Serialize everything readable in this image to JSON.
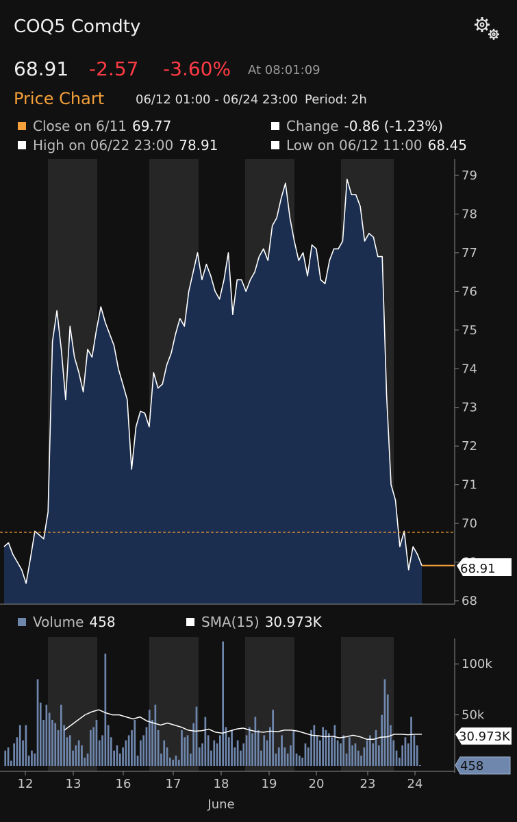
{
  "header": {
    "ticker": "COQ5 Comdty",
    "last": "68.91",
    "change": "-2.57",
    "change_pct": "-3.60%",
    "at_time": "At 08:01:09"
  },
  "price_chart": {
    "title": "Price Chart",
    "range": "06/12 01:00 - 06/24 23:00",
    "period": "Period: 2h",
    "legend": {
      "close_label": "Close on 6/11",
      "close_value": "69.77",
      "change_label": "Change",
      "change_value": "-0.86 (-1.23%)",
      "high_label": "High on 06/22 23:00",
      "high_value": "78.91",
      "low_label": "Low on 06/12 11:00",
      "low_value": "68.45"
    },
    "last_tag": "68.91"
  },
  "volume_chart": {
    "volume_label": "Volume",
    "volume_value": "458",
    "sma_label": "SMA(15)",
    "sma_value": "30.973K",
    "sma_tag": "30.973K",
    "volume_tag": "458"
  },
  "colors": {
    "background": "#111111",
    "area_fill": "#1b2e4f",
    "price_line": "#ffffff",
    "volume_bar": "#6f87ad",
    "negative": "#ff3b45",
    "accent": "#f5a03a",
    "session_band": "#262626"
  },
  "icons": {
    "settings": "gears-icon"
  },
  "chart_data": [
    {
      "type": "area",
      "ylim": [
        68,
        79
      ],
      "yticks": [
        68,
        69,
        70,
        71,
        72,
        73,
        74,
        75,
        76,
        77,
        78,
        79
      ],
      "reference_line": 69.77,
      "x_start": 12,
      "x_step_days": 0.0833,
      "values": [
        69.4,
        69.5,
        69.2,
        69.0,
        68.8,
        68.45,
        69.1,
        69.8,
        69.7,
        69.6,
        70.3,
        74.7,
        75.5,
        74.5,
        73.2,
        75.1,
        74.3,
        73.9,
        73.4,
        74.5,
        74.3,
        75.0,
        75.6,
        75.2,
        74.9,
        74.6,
        74.0,
        73.6,
        73.2,
        71.4,
        72.5,
        72.9,
        72.85,
        72.5,
        73.9,
        73.5,
        73.6,
        74.1,
        74.4,
        74.9,
        75.3,
        75.1,
        76.0,
        76.5,
        77.0,
        76.3,
        76.7,
        76.4,
        76.0,
        75.8,
        76.3,
        77.0,
        75.4,
        76.3,
        76.3,
        76.0,
        76.3,
        76.5,
        76.9,
        77.1,
        76.8,
        77.7,
        77.9,
        78.4,
        78.8,
        77.9,
        77.3,
        76.8,
        77.0,
        76.4,
        77.2,
        77.1,
        76.3,
        76.2,
        76.8,
        77.1,
        77.1,
        77.3,
        78.9,
        78.5,
        78.5,
        78.2,
        77.3,
        77.5,
        77.4,
        76.9,
        76.9,
        73.3,
        71.0,
        70.6,
        69.4,
        69.8,
        68.8,
        69.4,
        69.2,
        68.91
      ],
      "x_ticks": [
        "12",
        "13",
        "16",
        "17",
        "18",
        "19",
        "20",
        "23",
        "24"
      ],
      "x_label": "June",
      "last_value": 68.91
    },
    {
      "type": "bar",
      "ylim": [
        0,
        125000
      ],
      "yticks": [
        "100k",
        "50k"
      ],
      "ytick_values": [
        100000,
        50000
      ],
      "series": [
        {
          "name": "Volume",
          "values": [
            15000,
            18000,
            5000,
            22000,
            28000,
            40000,
            25000,
            40000,
            10000,
            15000,
            12000,
            85000,
            62000,
            45000,
            60000,
            52000,
            45000,
            42000,
            35000,
            60000,
            40000,
            28000,
            30000,
            15000,
            20000,
            25000,
            20000,
            8000,
            12000,
            35000,
            38000,
            45000,
            25000,
            30000,
            110000,
            40000,
            28000,
            15000,
            20000,
            12000,
            18000,
            25000,
            30000,
            35000,
            45000,
            10000,
            25000,
            30000,
            38000,
            55000,
            45000,
            60000,
            35000,
            12000,
            25000,
            18000,
            8000,
            6000,
            10000,
            6000,
            35000,
            28000,
            30000,
            12000,
            42000,
            58000,
            18000,
            22000,
            48000,
            30000,
            15000,
            25000,
            22000,
            30000,
            122000,
            38000,
            28000,
            35000,
            18000,
            25000,
            15000,
            22000,
            30000,
            38000,
            32000,
            48000,
            35000,
            15000,
            30000,
            25000,
            38000,
            55000,
            12000,
            18000,
            30000,
            18000,
            12000,
            20000,
            35000,
            12000,
            10000,
            8000,
            22000,
            18000,
            35000,
            40000,
            30000,
            25000,
            38000,
            35000,
            32000,
            28000,
            40000,
            25000,
            22000,
            30000,
            12000,
            28000,
            20000,
            22000,
            15000,
            10000,
            18000,
            25000,
            30000,
            22000,
            35000,
            20000,
            50000,
            85000,
            70000,
            40000,
            25000,
            15000,
            8000,
            20000,
            28000,
            22000,
            48000,
            30000,
            20000,
            458
          ]
        },
        {
          "name": "SMA(15)",
          "values": [
            35000,
            40000,
            45000,
            50000,
            53000,
            55000,
            52000,
            50000,
            50000,
            48000,
            46000,
            48000,
            44000,
            42000,
            40000,
            42000,
            40000,
            38000,
            35000,
            34000,
            34500,
            36000,
            33000,
            32000,
            34000,
            36000,
            37000,
            35000,
            33500,
            33000,
            34000,
            33500,
            35000,
            35000,
            34000,
            32000,
            30000,
            29500,
            28500,
            29000,
            27500,
            28500,
            30000,
            28500,
            26000,
            26000,
            28000,
            28500,
            31000,
            31000,
            30500,
            31000,
            30973
          ]
        }
      ]
    }
  ]
}
